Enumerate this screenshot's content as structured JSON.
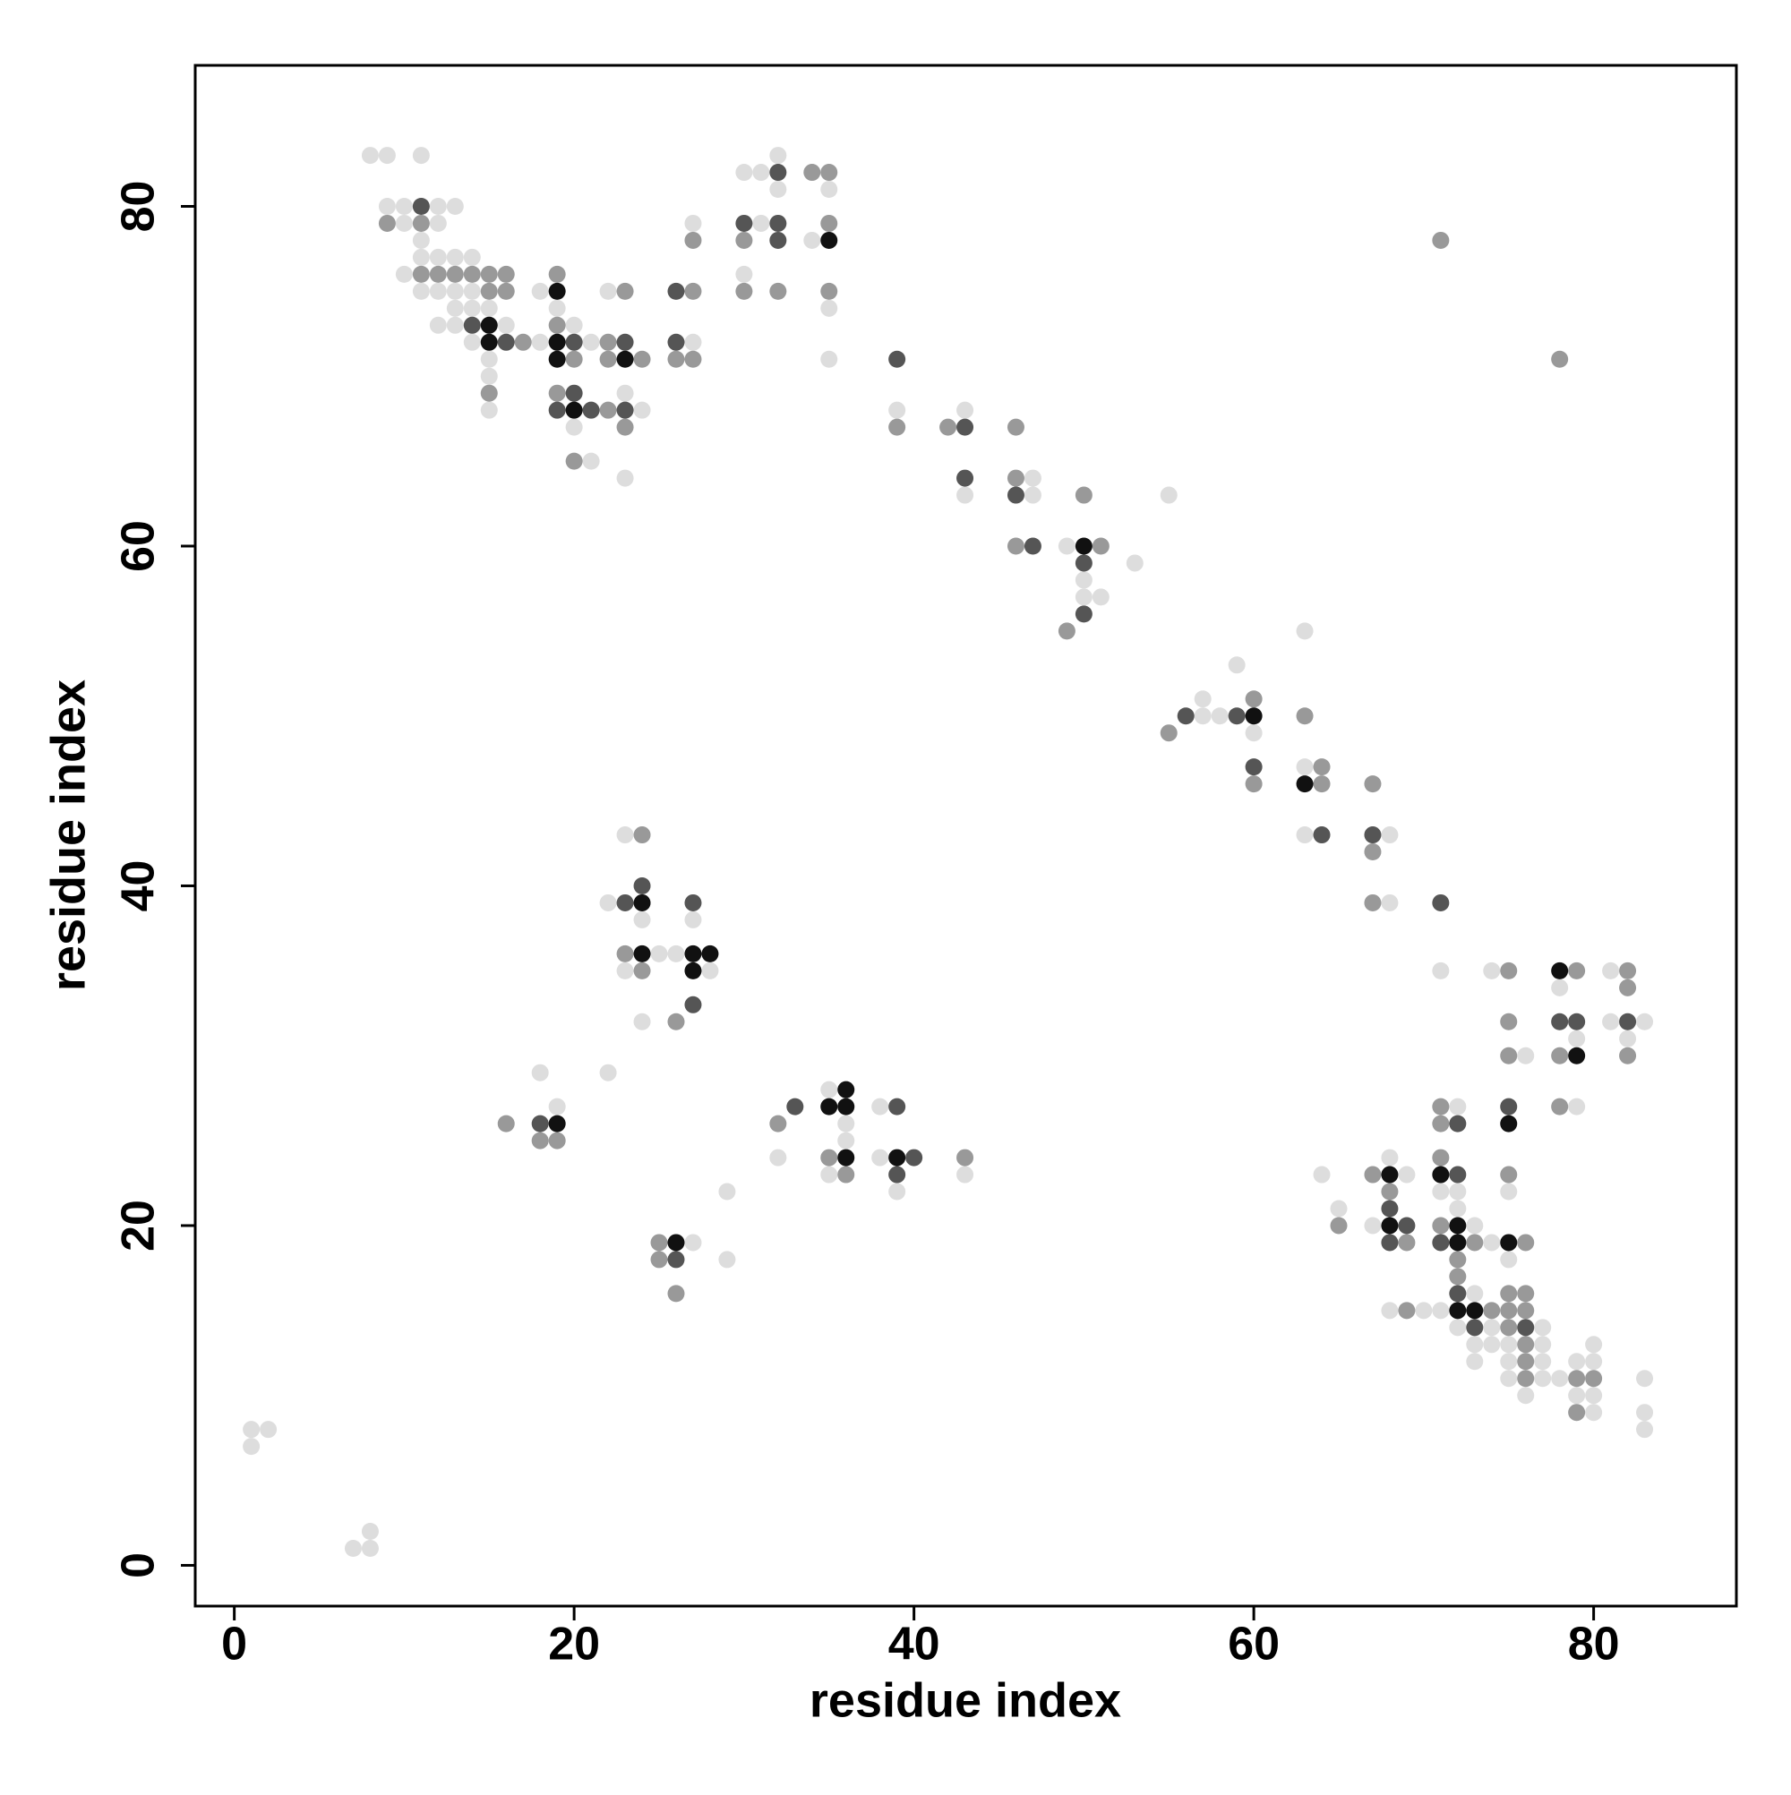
{
  "chart_data": {
    "type": "scatter",
    "xlabel": "residue index",
    "ylabel": "residue index",
    "xlim": [
      -2.3,
      88.4
    ],
    "ylim": [
      -2.4,
      88.3
    ],
    "xticks": [
      0,
      20,
      40,
      60,
      80
    ],
    "yticks": [
      0,
      20,
      40,
      60,
      80
    ],
    "series": [
      {
        "color": "#dddddd",
        "x": [
          1,
          2,
          1,
          7,
          8,
          8,
          8,
          9,
          11,
          9,
          10,
          12,
          13,
          10,
          12,
          11,
          11,
          12,
          13,
          14,
          10,
          11,
          12,
          13,
          14,
          18,
          22,
          13,
          14,
          15,
          19,
          12,
          13,
          16,
          20,
          14,
          18,
          21,
          27,
          15,
          15,
          23,
          15,
          24,
          20,
          21,
          23,
          32,
          30,
          31,
          32,
          35,
          27,
          31,
          34,
          30,
          35,
          35,
          39,
          43,
          47,
          43,
          47,
          55,
          49,
          53,
          50,
          50,
          51,
          63,
          59,
          57,
          57,
          58,
          60,
          63,
          63,
          68,
          68,
          23,
          22,
          24,
          27,
          25,
          26,
          23,
          28,
          24,
          18,
          22,
          19,
          38,
          35,
          36,
          36,
          32,
          38,
          35,
          43,
          29,
          39,
          27,
          29,
          71,
          74,
          81,
          78,
          81,
          83,
          79,
          82,
          76,
          72,
          79,
          68,
          64,
          69,
          71,
          72,
          75,
          65,
          72,
          67,
          73,
          74,
          75,
          73,
          68,
          70,
          71,
          72,
          74,
          77,
          73,
          74,
          75,
          77,
          80,
          73,
          75,
          77,
          79,
          80,
          75,
          77,
          78,
          83,
          76,
          79,
          80,
          80,
          83,
          83
        ],
        "values": [
          8,
          8,
          7,
          1,
          1,
          2,
          83,
          83,
          83,
          80,
          80,
          80,
          80,
          79,
          79,
          78,
          77,
          77,
          77,
          77,
          76,
          75,
          75,
          75,
          75,
          75,
          75,
          74,
          74,
          74,
          74,
          73,
          73,
          73,
          73,
          72,
          72,
          72,
          72,
          71,
          70,
          69,
          68,
          68,
          67,
          65,
          64,
          83,
          82,
          82,
          81,
          81,
          79,
          79,
          78,
          76,
          74,
          71,
          68,
          68,
          64,
          63,
          63,
          63,
          60,
          59,
          58,
          57,
          57,
          55,
          53,
          51,
          50,
          50,
          49,
          47,
          43,
          43,
          39,
          43,
          39,
          38,
          38,
          36,
          36,
          35,
          35,
          32,
          29,
          29,
          27,
          27,
          28,
          26,
          25,
          24,
          24,
          23,
          23,
          22,
          22,
          19,
          18,
          35,
          35,
          35,
          34,
          32,
          32,
          31,
          31,
          30,
          27,
          27,
          24,
          23,
          23,
          22,
          22,
          22,
          21,
          21,
          20,
          20,
          19,
          18,
          16,
          15,
          15,
          15,
          14,
          14,
          14,
          13,
          13,
          13,
          13,
          13,
          12,
          12,
          12,
          12,
          12,
          11,
          11,
          11,
          11,
          10,
          10,
          10,
          9,
          9,
          8
        ]
      },
      {
        "color": "#999999",
        "x": [
          9,
          11,
          11,
          12,
          13,
          14,
          15,
          16,
          19,
          15,
          16,
          23,
          27,
          19,
          17,
          22,
          20,
          22,
          24,
          26,
          27,
          15,
          19,
          22,
          23,
          20,
          34,
          35,
          35,
          27,
          30,
          30,
          32,
          35,
          39,
          42,
          46,
          46,
          50,
          46,
          51,
          49,
          60,
          63,
          55,
          64,
          60,
          64,
          67,
          67,
          67,
          24,
          23,
          24,
          26,
          16,
          32,
          18,
          19,
          35,
          43,
          36,
          25,
          25,
          26,
          71,
          78,
          75,
          79,
          82,
          82,
          75,
          75,
          78,
          82,
          71,
          78,
          71,
          71,
          67,
          75,
          68,
          65,
          71,
          69,
          73,
          76,
          72,
          72,
          75,
          76,
          69,
          74,
          75,
          76,
          75,
          76,
          76,
          76,
          79,
          80,
          79
        ],
        "values": [
          79,
          79,
          76,
          76,
          76,
          76,
          76,
          76,
          76,
          75,
          75,
          75,
          75,
          73,
          72,
          72,
          71,
          71,
          71,
          71,
          71,
          69,
          69,
          68,
          67,
          65,
          82,
          82,
          79,
          78,
          78,
          75,
          75,
          75,
          67,
          67,
          67,
          64,
          63,
          60,
          60,
          55,
          51,
          50,
          49,
          47,
          46,
          46,
          46,
          42,
          39,
          43,
          36,
          35,
          32,
          26,
          26,
          25,
          25,
          24,
          24,
          23,
          19,
          18,
          16,
          78,
          71,
          35,
          35,
          35,
          34,
          32,
          30,
          30,
          30,
          27,
          27,
          26,
          24,
          23,
          23,
          22,
          20,
          20,
          19,
          19,
          19,
          18,
          17,
          16,
          16,
          15,
          15,
          15,
          15,
          14,
          13,
          12,
          11,
          11,
          11,
          9
        ]
      },
      {
        "color": "#555555",
        "x": [
          11,
          14,
          16,
          20,
          23,
          26,
          26,
          20,
          19,
          21,
          23,
          32,
          30,
          32,
          32,
          39,
          43,
          43,
          46,
          47,
          50,
          50,
          56,
          59,
          60,
          64,
          67,
          71,
          24,
          23,
          27,
          27,
          18,
          33,
          39,
          40,
          39,
          26,
          78,
          79,
          82,
          75,
          72,
          72,
          68,
          69,
          68,
          71,
          72,
          73,
          76
        ],
        "values": [
          80,
          73,
          72,
          72,
          72,
          72,
          75,
          69,
          68,
          68,
          68,
          82,
          79,
          79,
          78,
          71,
          67,
          64,
          63,
          60,
          59,
          56,
          50,
          50,
          47,
          43,
          43,
          39,
          40,
          39,
          39,
          33,
          26,
          27,
          27,
          24,
          23,
          18,
          32,
          32,
          32,
          27,
          26,
          23,
          21,
          20,
          19,
          19,
          16,
          14,
          14
        ]
      },
      {
        "color": "#111111",
        "x": [
          19,
          15,
          15,
          19,
          19,
          23,
          20,
          35,
          50,
          60,
          63,
          24,
          24,
          27,
          28,
          27,
          35,
          36,
          36,
          19,
          36,
          39,
          26,
          78,
          79,
          75,
          68,
          71,
          68,
          72,
          72,
          75,
          72,
          73
        ],
        "values": [
          75,
          73,
          72,
          72,
          71,
          71,
          68,
          78,
          60,
          50,
          46,
          39,
          36,
          36,
          36,
          35,
          27,
          27,
          28,
          26,
          24,
          24,
          19,
          35,
          30,
          26,
          23,
          23,
          20,
          20,
          19,
          19,
          15,
          15
        ]
      }
    ]
  }
}
